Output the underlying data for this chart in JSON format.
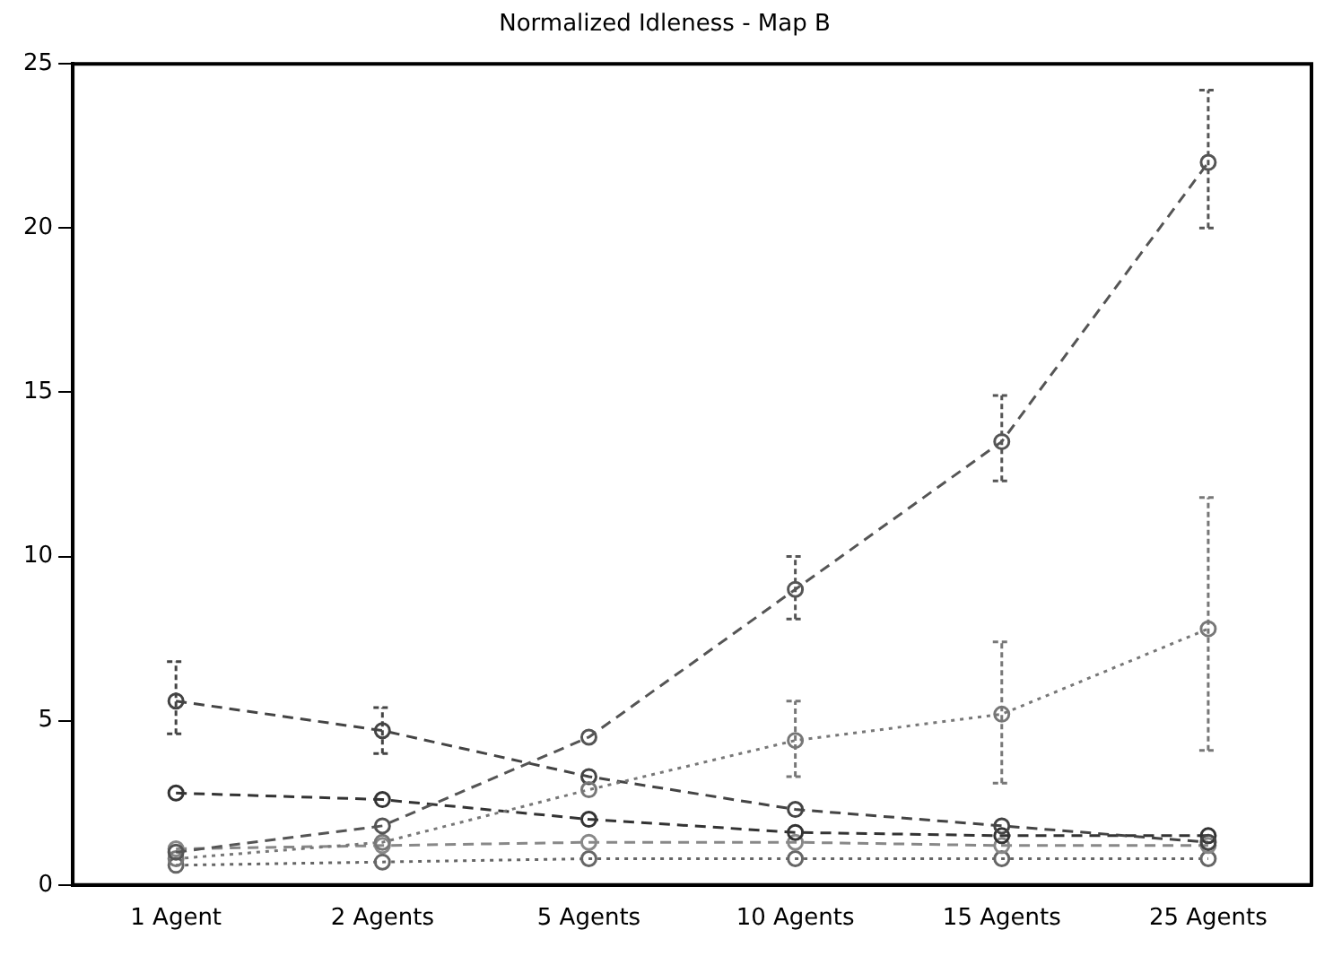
{
  "chart_data": {
    "type": "line",
    "title": "Normalized Idleness - Map B",
    "categories": [
      "1 Agent",
      "2 Agents",
      "5 Agents",
      "10 Agents",
      "15 Agents",
      "25 Agents"
    ],
    "ylim": [
      0,
      25
    ],
    "yticks": [
      0,
      5,
      10,
      15,
      20,
      25
    ],
    "grid": false,
    "legend": false,
    "marker": "circle",
    "series": [
      {
        "color": "#555555",
        "line_style": "dashed",
        "values": [
          1.0,
          1.8,
          4.5,
          9.0,
          13.5,
          22.0
        ],
        "errors": [
          null,
          null,
          null,
          [
            8.1,
            10.0
          ],
          [
            12.3,
            14.9
          ],
          [
            20.0,
            24.2
          ]
        ]
      },
      {
        "color": "#777777",
        "line_style": "dotted",
        "values": [
          0.8,
          1.3,
          2.9,
          4.4,
          5.2,
          7.8
        ],
        "errors": [
          null,
          null,
          null,
          [
            3.3,
            5.6
          ],
          [
            3.1,
            7.4
          ],
          [
            4.1,
            11.8
          ]
        ]
      },
      {
        "color": "#444444",
        "line_style": "dashed",
        "values": [
          5.6,
          4.7,
          3.3,
          2.3,
          1.8,
          1.3
        ],
        "errors": [
          [
            4.6,
            6.8
          ],
          [
            4.0,
            5.4
          ],
          null,
          null,
          null,
          null
        ]
      },
      {
        "color": "#333333",
        "line_style": "dashed",
        "values": [
          2.8,
          2.6,
          2.0,
          1.6,
          1.5,
          1.5
        ]
      },
      {
        "color": "#888888",
        "line_style": "dashed",
        "values": [
          1.1,
          1.2,
          1.3,
          1.3,
          1.2,
          1.2
        ]
      },
      {
        "color": "#666666",
        "line_style": "dotted",
        "values": [
          0.6,
          0.7,
          0.8,
          0.8,
          0.8,
          0.8
        ]
      }
    ]
  }
}
